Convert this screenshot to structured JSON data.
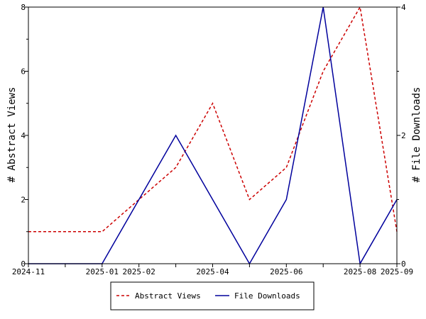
{
  "chart_data": {
    "type": "line",
    "x": [
      "2024-11",
      "2024-12",
      "2025-01",
      "2025-02",
      "2025-03",
      "2025-04",
      "2025-05",
      "2025-06",
      "2025-07",
      "2025-08",
      "2025-09"
    ],
    "x_tick_labels": [
      "2024-11",
      "2025-01",
      "2025-02",
      "2025-04",
      "2025-06",
      "2025-08",
      "2025-09"
    ],
    "x_tick_positions": [
      "2024-11",
      "2025-01",
      "2025-02",
      "2025-04",
      "2025-06",
      "2025-08",
      "2025-09"
    ],
    "ylabel": "# Abstract Views",
    "ylabel_right": "# File Downloads",
    "ylim": [
      0,
      8
    ],
    "ylim_right": [
      0,
      4
    ],
    "yticks": [
      "0",
      "2",
      "4",
      "6",
      "8"
    ],
    "yticks_right": [
      "0",
      "2",
      "4"
    ],
    "series": [
      {
        "name": "Abstract Views",
        "axis": "left",
        "color": "#cc0000",
        "style": "dashed",
        "values": [
          1,
          1,
          1,
          2,
          3,
          5,
          2,
          3,
          6,
          8,
          1
        ]
      },
      {
        "name": "File Downloads",
        "axis": "right",
        "color": "#00009c",
        "style": "solid",
        "values": [
          0,
          0,
          0,
          1,
          2,
          1,
          0,
          1,
          4,
          0,
          1
        ]
      }
    ],
    "legend_position": "bottom-center",
    "grid": false
  }
}
